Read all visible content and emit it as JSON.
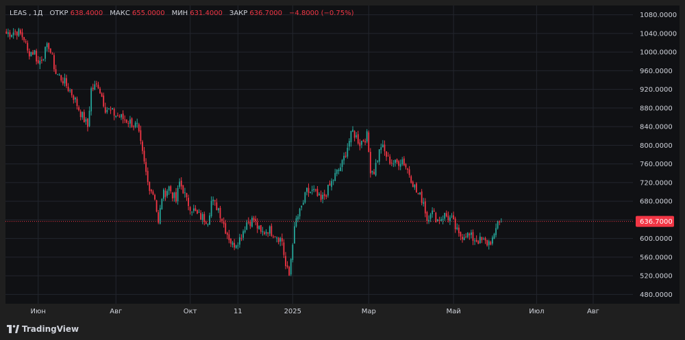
{
  "legend": {
    "ticker": "LEAS",
    "interval": "1Д",
    "open_label": "ОТКР",
    "open_value": "638.4000",
    "high_label": "МАКС",
    "high_value": "655.0000",
    "low_label": "МИН",
    "low_value": "631.4000",
    "close_label": "ЗАКР",
    "close_value": "636.7000",
    "change": "−4.8000 (−0.75%)"
  },
  "branding": {
    "name": "TradingView"
  },
  "price_tag": "636.7000",
  "colors": {
    "up": "#26a69a",
    "down": "#f23645",
    "background": "#101114",
    "grid": "#23262e",
    "text": "#d1d4dc"
  },
  "chart_data": {
    "type": "candlestick",
    "ticker": "LEAS",
    "interval": "1Д",
    "ylim": [
      460,
      1100
    ],
    "y_ticks": [
      "480.0000",
      "520.0000",
      "560.0000",
      "600.0000",
      "640.0000",
      "680.0000",
      "720.0000",
      "760.0000",
      "800.0000",
      "840.0000",
      "880.0000",
      "920.0000",
      "960.0000",
      "1000.0000",
      "1040.0000",
      "1080.0000"
    ],
    "y_tick_values": [
      480,
      520,
      560,
      600,
      640,
      680,
      720,
      760,
      800,
      840,
      880,
      920,
      960,
      1000,
      1040,
      1080
    ],
    "x_ticks": [
      {
        "label": "Июн",
        "index": 18
      },
      {
        "label": "Авг",
        "index": 62
      },
      {
        "label": "Окт",
        "index": 104
      },
      {
        "label": "11",
        "index": 131
      },
      {
        "label": "2025",
        "index": 162
      },
      {
        "label": "Мар",
        "index": 205
      },
      {
        "label": "Май",
        "index": 253
      },
      {
        "label": "Июл",
        "index": 300
      },
      {
        "label": "Авг",
        "index": 332
      }
    ],
    "total_slots": 355,
    "last_close": 636.7,
    "close_path": [
      [
        0,
        1040
      ],
      [
        6,
        1045
      ],
      [
        10,
        1030
      ],
      [
        12,
        1000
      ],
      [
        16,
        1000
      ],
      [
        18,
        975
      ],
      [
        24,
        1015
      ],
      [
        28,
        955
      ],
      [
        32,
        940
      ],
      [
        38,
        905
      ],
      [
        42,
        870
      ],
      [
        46,
        840
      ],
      [
        48,
        920
      ],
      [
        52,
        930
      ],
      [
        56,
        880
      ],
      [
        62,
        865
      ],
      [
        70,
        850
      ],
      [
        74,
        840
      ],
      [
        76,
        800
      ],
      [
        80,
        720
      ],
      [
        84,
        690
      ],
      [
        86,
        630
      ],
      [
        88,
        690
      ],
      [
        92,
        710
      ],
      [
        96,
        680
      ],
      [
        98,
        720
      ],
      [
        100,
        705
      ],
      [
        102,
        680
      ],
      [
        108,
        650
      ],
      [
        114,
        640
      ],
      [
        116,
        680
      ],
      [
        120,
        665
      ],
      [
        124,
        620
      ],
      [
        128,
        585
      ],
      [
        132,
        600
      ],
      [
        136,
        635
      ],
      [
        140,
        640
      ],
      [
        144,
        610
      ],
      [
        148,
        620
      ],
      [
        152,
        610
      ],
      [
        156,
        595
      ],
      [
        158,
        540
      ],
      [
        160,
        520
      ],
      [
        162,
        595
      ],
      [
        164,
        640
      ],
      [
        166,
        655
      ],
      [
        170,
        700
      ],
      [
        174,
        700
      ],
      [
        178,
        680
      ],
      [
        182,
        705
      ],
      [
        186,
        735
      ],
      [
        190,
        760
      ],
      [
        194,
        810
      ],
      [
        196,
        830
      ],
      [
        200,
        805
      ],
      [
        204,
        820
      ],
      [
        206,
        750
      ],
      [
        208,
        745
      ],
      [
        212,
        800
      ],
      [
        216,
        770
      ],
      [
        220,
        760
      ],
      [
        224,
        770
      ],
      [
        228,
        740
      ],
      [
        232,
        700
      ],
      [
        236,
        680
      ],
      [
        238,
        640
      ],
      [
        240,
        660
      ],
      [
        244,
        640
      ],
      [
        248,
        650
      ],
      [
        252,
        640
      ],
      [
        256,
        605
      ],
      [
        260,
        610
      ],
      [
        264,
        600
      ],
      [
        268,
        595
      ],
      [
        272,
        590
      ],
      [
        276,
        600
      ],
      [
        278,
        640
      ],
      [
        280,
        637
      ]
    ]
  }
}
